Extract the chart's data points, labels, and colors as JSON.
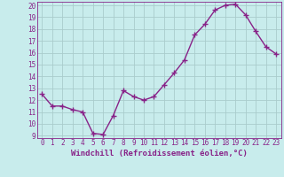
{
  "x": [
    0,
    1,
    2,
    3,
    4,
    5,
    6,
    7,
    8,
    9,
    10,
    11,
    12,
    13,
    14,
    15,
    16,
    17,
    18,
    19,
    20,
    21,
    22,
    23
  ],
  "y": [
    12.5,
    11.5,
    11.5,
    11.2,
    11.0,
    9.2,
    9.1,
    10.7,
    12.8,
    12.3,
    12.0,
    12.3,
    13.3,
    14.3,
    15.4,
    17.5,
    18.4,
    19.6,
    20.0,
    20.1,
    19.2,
    17.8,
    16.5,
    15.9
  ],
  "line_color": "#882288",
  "marker": "+",
  "marker_size": 5,
  "bg_color": "#c8ecec",
  "grid_color": "#aacccc",
  "xlabel": "Windchill (Refroidissement éolien,°C)",
  "xlim": [
    -0.5,
    23.5
  ],
  "ylim": [
    9,
    20.3
  ],
  "yticks": [
    9,
    10,
    11,
    12,
    13,
    14,
    15,
    16,
    17,
    18,
    19,
    20
  ],
  "xticks": [
    0,
    1,
    2,
    3,
    4,
    5,
    6,
    7,
    8,
    9,
    10,
    11,
    12,
    13,
    14,
    15,
    16,
    17,
    18,
    19,
    20,
    21,
    22,
    23
  ],
  "tick_color": "#882288",
  "label_color": "#882288",
  "xlabel_fontsize": 6.5,
  "tick_fontsize": 5.5,
  "line_width": 1.0
}
